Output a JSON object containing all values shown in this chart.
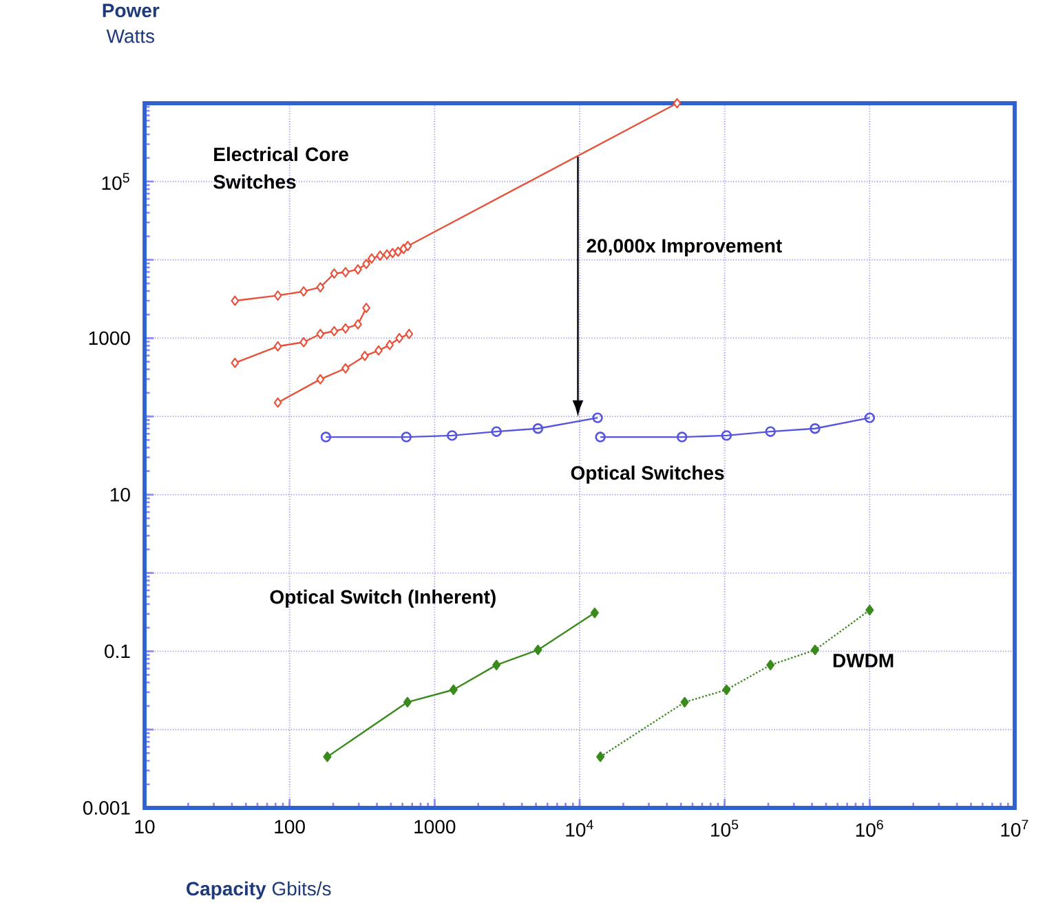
{
  "chart_data": {
    "type": "line",
    "xlabel": "**Capacity** Gbits/s",
    "ylabel": "**Power** Watts",
    "log": "xy",
    "grid": true,
    "xlim": [
      10,
      10000000
    ],
    "ylim": [
      0.001,
      1000000
    ],
    "xticks": [
      10,
      100,
      1000,
      {
        "value": 10000,
        "label": "10$^{4}$"
      },
      {
        "value": 100000,
        "label": "10$^{5}$"
      },
      {
        "value": 1000000,
        "label": "10$^{6}$"
      },
      {
        "value": 10000000,
        "label": "10$^{7}$"
      }
    ],
    "yticks": [
      0.001,
      {
        "value": 0.01,
        "label": null
      },
      0.1,
      {
        "value": 1,
        "label": null
      },
      10,
      {
        "value": 100,
        "label": null
      },
      1000,
      {
        "value": 10000,
        "label": null
      },
      {
        "value": 100000,
        "label": "10$^{5}$"
      },
      {
        "value": 1000000,
        "label": null
      }
    ],
    "series": [
      {
        "color": "#e8503a",
        "marker": "diamond",
        "x": [
          42,
          83,
          125,
          163,
          203,
          243,
          296,
          338,
          368,
          421,
          469,
          513,
          560,
          611,
          653,
          47000
        ],
        "values": [
          3000,
          3500,
          3950,
          4460,
          6680,
          6960,
          7540,
          8850,
          10400,
          11300,
          11700,
          12200,
          12700,
          13800,
          15000,
          1000000
        ]
      },
      {
        "color": "#e8503a",
        "marker": "diamond",
        "x": [
          42,
          83,
          125,
          163,
          203,
          243,
          296,
          338
        ],
        "values": [
          483,
          785,
          886,
          1130,
          1225,
          1330,
          1500,
          2430
        ]
      },
      {
        "color": "#e8503a",
        "marker": "diamond",
        "x": [
          83,
          163,
          243,
          330,
          411,
          490,
          571,
          667
        ],
        "values": [
          150,
          298,
          411,
          592,
          695,
          817,
          1000,
          1130
        ]
      },
      {
        "name": "Optical Switches",
        "color": "#5555e0",
        "marker": "circle",
        "x": [
          178,
          638,
          1320,
          2670,
          5160,
          13300
        ],
        "values": [
          54.5,
          54.5,
          57,
          64,
          70,
          96
        ]
      },
      {
        "color": "#5555e0",
        "marker": "circle",
        "x": [
          13900,
          50800,
          103000,
          207000,
          420000,
          1000000
        ],
        "values": [
          54.5,
          54.5,
          57,
          64,
          70,
          96
        ]
      },
      {
        "name": "Optical Switch (Inherent)",
        "color": "#3a8a1e",
        "marker": "diamond",
        "x": [
          182,
          650,
          1350,
          2670,
          5160,
          12700
        ],
        "values": [
          0.0045,
          0.0224,
          0.0323,
          0.0668,
          0.104,
          0.31
        ]
      },
      {
        "name": "DWDM",
        "color": "#3a8a1e",
        "marker": "diamond",
        "line_style": "dotted",
        "x": [
          13900,
          53000,
          103000,
          207000,
          420000,
          1000000
        ],
        "values": [
          0.0045,
          0.0224,
          0.0323,
          0.0668,
          0.104,
          0.336
        ]
      }
    ],
    "annotations": [
      "Electrical Core Switches",
      "20,000x Improvement"
    ]
  }
}
